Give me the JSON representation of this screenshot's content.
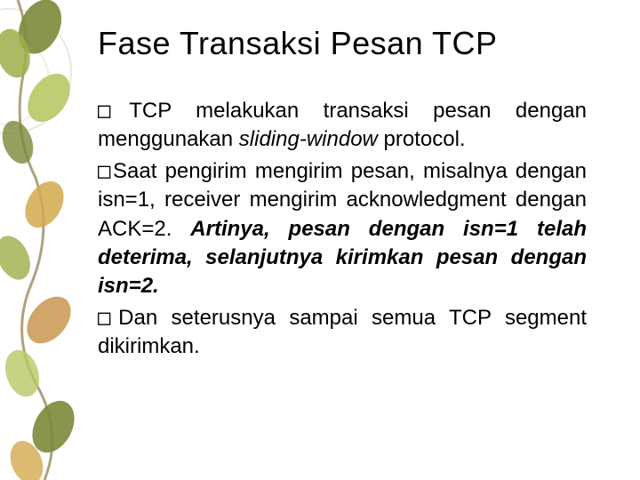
{
  "slide": {
    "title": "Fase Transaksi Pesan TCP",
    "title_color": "#000000",
    "title_fontsize": 36,
    "body_fontsize": 24,
    "body_color": "#000000",
    "background_color": "#ffffff",
    "bullets": [
      {
        "marker": "□",
        "runs": [
          {
            "text": "TCP melakukan transaksi pesan dengan menggunakan ",
            "style": "normal"
          },
          {
            "text": "sliding-window",
            "style": "italic"
          },
          {
            "text": " protocol.",
            "style": "normal"
          }
        ]
      },
      {
        "marker": "□",
        "runs": [
          {
            "text": "Saat pengirim mengirim pesan, misalnya dengan isn=1, receiver mengirim acknowledgment dengan ACK=2. ",
            "style": "normal"
          },
          {
            "text": "Artinya, pesan dengan isn=1 telah deterima, selanjutnya kirimkan pesan dengan isn=2.",
            "style": "bold-italic"
          }
        ]
      },
      {
        "marker": "□",
        "runs": [
          {
            "text": "Dan seterusnya sampai semua TCP segment dikirimkan.",
            "style": "normal"
          }
        ]
      }
    ],
    "decoration": {
      "leaf_colors": [
        "#7a8a3a",
        "#9caf4a",
        "#b8c866",
        "#d4a94e",
        "#c89650"
      ],
      "vine_color": "#8a7a4a",
      "ring_color": "#d0c8a0"
    }
  }
}
